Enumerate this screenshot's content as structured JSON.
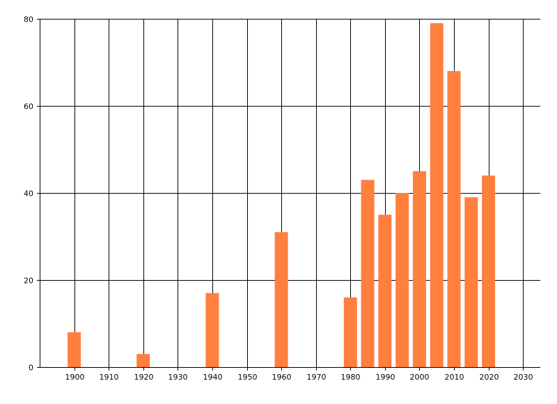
{
  "chart_data": {
    "type": "bar",
    "title": "",
    "xlabel": "",
    "ylabel": "",
    "x": [
      1900,
      1920,
      1940,
      1960,
      1980,
      1985,
      1990,
      1995,
      2000,
      2005,
      2010,
      2015,
      2020
    ],
    "values": [
      8,
      3,
      17,
      31,
      16,
      43,
      35,
      40,
      45,
      79,
      68,
      39,
      44
    ],
    "xlim": [
      1890,
      2035
    ],
    "ylim": [
      0,
      80
    ],
    "x_ticks": [
      1900,
      1910,
      1920,
      1930,
      1940,
      1950,
      1960,
      1970,
      1980,
      1990,
      2000,
      2010,
      2020,
      2030
    ],
    "y_ticks": [
      0,
      20,
      40,
      60,
      80
    ],
    "grid": true,
    "bar_color": "#FF7F3F",
    "grid_color": "#000000"
  }
}
